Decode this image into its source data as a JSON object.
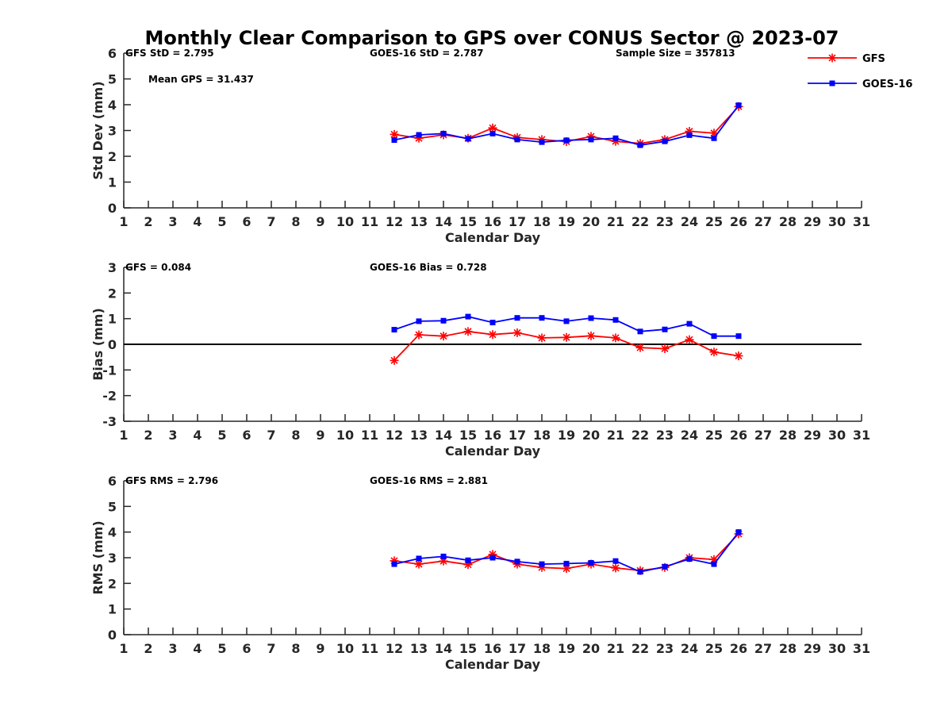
{
  "chart_data": {
    "type": "line",
    "title": "Monthly Clear Comparison to GPS over CONUS Sector @ 2023-07",
    "legend": {
      "placement": "top-right",
      "entries": [
        {
          "name": "GFS",
          "color": "#ff0000",
          "marker": "asterisk"
        },
        {
          "name": "GOES-16",
          "color": "#0000ff",
          "marker": "square"
        }
      ]
    },
    "panels": [
      {
        "id": "std",
        "ylabel": "Std Dev (mm)",
        "xlabel": "Calendar Day",
        "xlim": [
          1,
          31
        ],
        "ylim": [
          0,
          6
        ],
        "yticks": [
          0,
          1,
          2,
          3,
          4,
          5,
          6
        ],
        "xticks": [
          1,
          2,
          3,
          4,
          5,
          6,
          7,
          8,
          9,
          10,
          11,
          12,
          13,
          14,
          15,
          16,
          17,
          18,
          19,
          20,
          21,
          22,
          23,
          24,
          25,
          26,
          27,
          28,
          29,
          30,
          31
        ],
        "zero_line": false,
        "stats": [
          {
            "text": "GFS StD = 2.795",
            "pos": "left"
          },
          {
            "text": "GOES-16 StD = 2.787",
            "pos": "center"
          },
          {
            "text": "Sample Size = 357813",
            "pos": "right"
          },
          {
            "text": "Mean GPS = 31.437",
            "pos": "left2"
          }
        ],
        "x": [
          12,
          13,
          14,
          15,
          16,
          17,
          18,
          19,
          20,
          21,
          22,
          23,
          24,
          25,
          26
        ],
        "series": [
          {
            "name": "GFS",
            "values": [
              2.85,
              2.7,
              2.83,
              2.7,
              3.1,
              2.73,
              2.65,
              2.57,
              2.77,
              2.58,
              2.5,
              2.65,
              2.97,
              2.9,
              3.93
            ]
          },
          {
            "name": "GOES-16",
            "values": [
              2.63,
              2.83,
              2.88,
              2.68,
              2.88,
              2.65,
              2.55,
              2.62,
              2.65,
              2.7,
              2.43,
              2.58,
              2.82,
              2.7,
              3.98
            ]
          }
        ]
      },
      {
        "id": "bias",
        "ylabel": "Bias (mm)",
        "xlabel": "Calendar Day",
        "xlim": [
          1,
          31
        ],
        "ylim": [
          -3,
          3
        ],
        "yticks": [
          -3,
          -2,
          -1,
          0,
          1,
          2,
          3
        ],
        "xticks": [
          1,
          2,
          3,
          4,
          5,
          6,
          7,
          8,
          9,
          10,
          11,
          12,
          13,
          14,
          15,
          16,
          17,
          18,
          19,
          20,
          21,
          22,
          23,
          24,
          25,
          26,
          27,
          28,
          29,
          30,
          31
        ],
        "zero_line": true,
        "stats": [
          {
            "text": "GFS = 0.084",
            "pos": "left"
          },
          {
            "text": "GOES-16 Bias = 0.728",
            "pos": "center"
          }
        ],
        "x": [
          12,
          13,
          14,
          15,
          16,
          17,
          18,
          19,
          20,
          21,
          22,
          23,
          24,
          25,
          26
        ],
        "series": [
          {
            "name": "GFS",
            "values": [
              -0.63,
              0.37,
              0.32,
              0.5,
              0.38,
              0.45,
              0.25,
              0.27,
              0.33,
              0.25,
              -0.13,
              -0.17,
              0.18,
              -0.3,
              -0.45
            ]
          },
          {
            "name": "GOES-16",
            "values": [
              0.57,
              0.9,
              0.92,
              1.08,
              0.85,
              1.03,
              1.03,
              0.9,
              1.02,
              0.95,
              0.5,
              0.58,
              0.8,
              0.32,
              0.32
            ]
          }
        ]
      },
      {
        "id": "rms",
        "ylabel": "RMS (mm)",
        "xlabel": "Calendar Day",
        "xlim": [
          1,
          31
        ],
        "ylim": [
          0,
          6
        ],
        "yticks": [
          0,
          1,
          2,
          3,
          4,
          5,
          6
        ],
        "xticks": [
          1,
          2,
          3,
          4,
          5,
          6,
          7,
          8,
          9,
          10,
          11,
          12,
          13,
          14,
          15,
          16,
          17,
          18,
          19,
          20,
          21,
          22,
          23,
          24,
          25,
          26,
          27,
          28,
          29,
          30,
          31
        ],
        "zero_line": false,
        "stats": [
          {
            "text": "GFS RMS = 2.796",
            "pos": "left"
          },
          {
            "text": "GOES-16 RMS = 2.881",
            "pos": "center"
          }
        ],
        "x": [
          12,
          13,
          14,
          15,
          16,
          17,
          18,
          19,
          20,
          21,
          22,
          23,
          24,
          25,
          26
        ],
        "series": [
          {
            "name": "GFS",
            "values": [
              2.88,
              2.75,
              2.87,
              2.73,
              3.13,
              2.75,
              2.62,
              2.58,
              2.75,
              2.6,
              2.5,
              2.62,
              3.0,
              2.93,
              3.93
            ]
          },
          {
            "name": "GOES-16",
            "values": [
              2.75,
              2.97,
              3.05,
              2.9,
              3.0,
              2.85,
              2.75,
              2.77,
              2.8,
              2.87,
              2.45,
              2.65,
              2.95,
              2.75,
              4.0
            ]
          }
        ]
      }
    ]
  }
}
